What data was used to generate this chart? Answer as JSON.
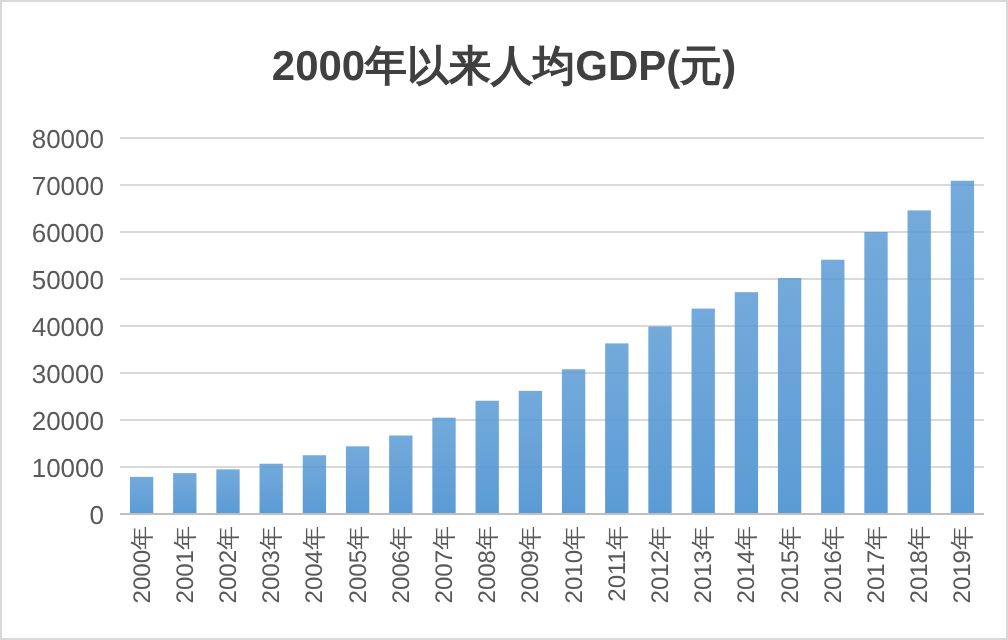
{
  "chart_data": {
    "type": "bar",
    "title": "2000年以来人均GDP(元)",
    "categories": [
      "2000年",
      "2001年",
      "2002年",
      "2003年",
      "2004年",
      "2005年",
      "2006年",
      "2007年",
      "2008年",
      "2009年",
      "2010年",
      "2011年",
      "2012年",
      "2013年",
      "2014年",
      "2015年",
      "2016年",
      "2017年",
      "2018年",
      "2019年"
    ],
    "values": [
      7900,
      8700,
      9500,
      10700,
      12500,
      14400,
      16700,
      20500,
      24100,
      26200,
      30800,
      36300,
      39900,
      43700,
      47200,
      50200,
      54100,
      60000,
      64600,
      70900
    ],
    "color": "#5b9bd5",
    "ylim": [
      0,
      80000
    ],
    "yticks": [
      0,
      10000,
      20000,
      30000,
      40000,
      50000,
      60000,
      70000,
      80000
    ],
    "grid": "y"
  }
}
